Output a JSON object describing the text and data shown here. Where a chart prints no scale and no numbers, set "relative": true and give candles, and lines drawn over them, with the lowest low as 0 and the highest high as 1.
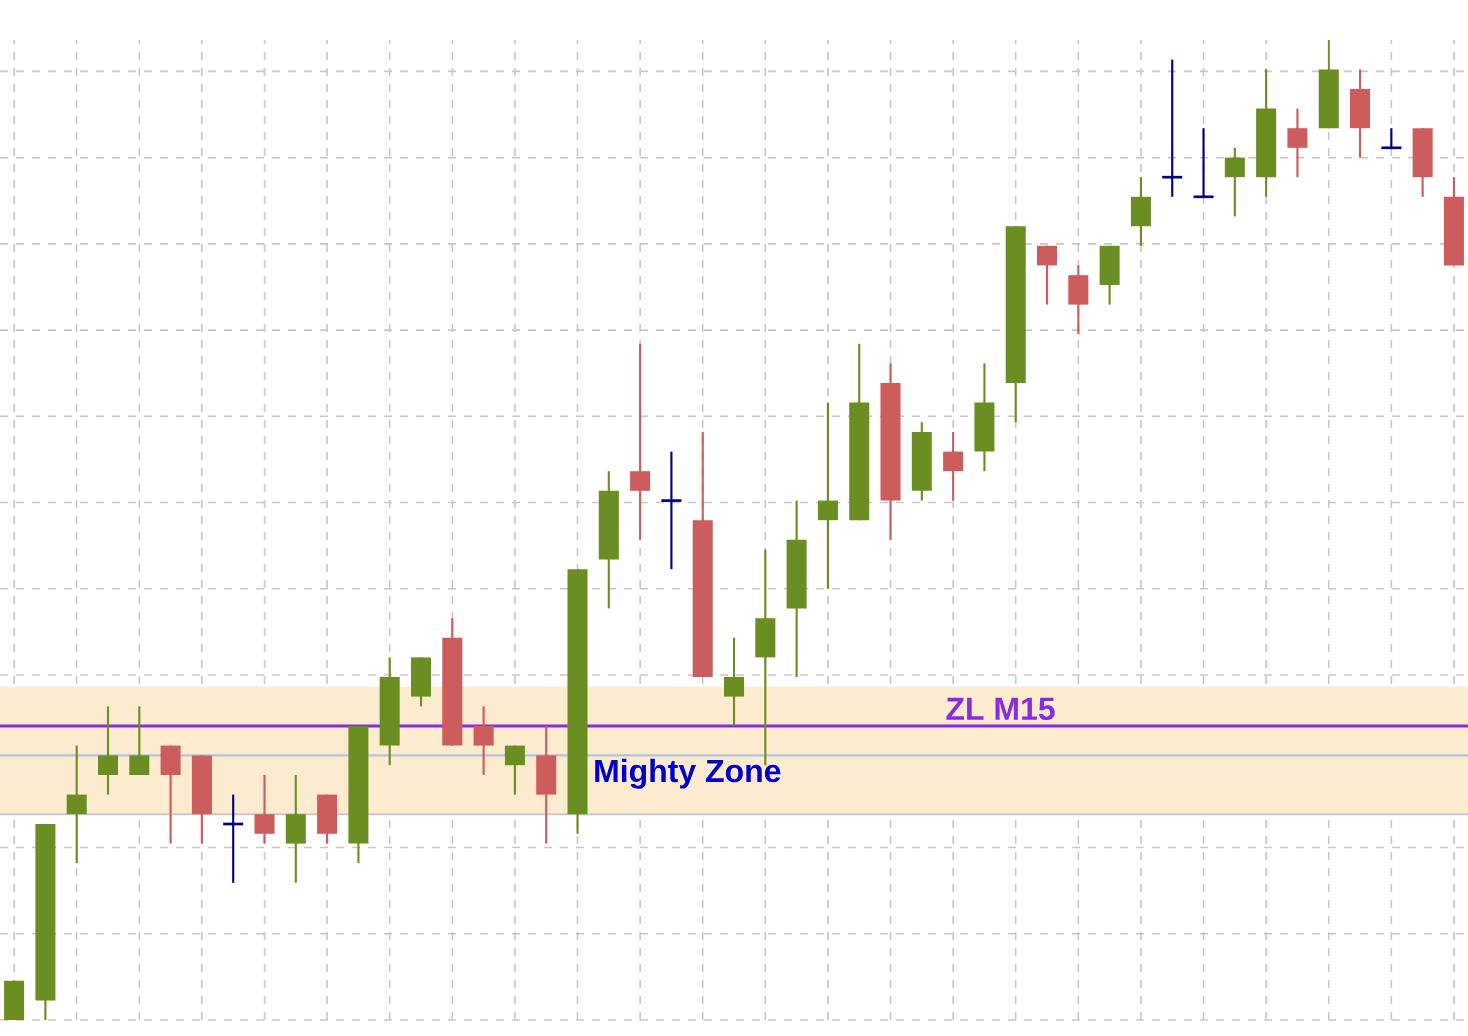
{
  "chart_data": {
    "type": "candlestick",
    "relative": true,
    "categories": [
      null,
      null,
      null,
      null,
      null,
      null,
      null,
      null,
      null,
      null,
      null,
      null,
      null,
      null,
      null,
      null,
      null,
      null,
      null,
      null,
      null,
      null,
      null,
      null,
      null,
      null,
      null,
      null,
      null,
      null,
      null,
      null,
      null,
      null,
      null,
      null,
      null,
      null,
      null,
      null,
      null,
      null,
      null,
      null,
      null,
      null,
      null
    ],
    "ohlc": [
      [
        0.0,
        0.04,
        0,
        0.04
      ],
      [
        0.02,
        0.2,
        0,
        0.2
      ],
      [
        0.21,
        0.28,
        0.16,
        0.23
      ],
      [
        0.25,
        0.32,
        0.23,
        0.27
      ],
      [
        0.25,
        0.32,
        0.25,
        0.27
      ],
      [
        0.28,
        0.28,
        0.18,
        0.25
      ],
      [
        0.27,
        0.27,
        0.18,
        0.21
      ],
      [
        0.2,
        0.23,
        0.14,
        0.2
      ],
      [
        0.21,
        0.25,
        0.18,
        0.19
      ],
      [
        0.18,
        0.25,
        0.14,
        0.21
      ],
      [
        0.23,
        0.23,
        0.18,
        0.19
      ],
      [
        0.18,
        0.3,
        0.16,
        0.3
      ],
      [
        0.28,
        0.37,
        0.26,
        0.35
      ],
      [
        0.33,
        0.37,
        0.32,
        0.37
      ],
      [
        0.39,
        0.41,
        0.28,
        0.28
      ],
      [
        0.3,
        0.32,
        0.25,
        0.28
      ],
      [
        0.26,
        0.28,
        0.23,
        0.28
      ],
      [
        0.27,
        0.3,
        0.18,
        0.23
      ],
      [
        0.21,
        0.46,
        0.19,
        0.46
      ],
      [
        0.47,
        0.56,
        0.42,
        0.54
      ],
      [
        0.56,
        0.69,
        0.49,
        0.54
      ],
      [
        0.53,
        0.58,
        0.46,
        0.53
      ],
      [
        0.51,
        0.6,
        0.35,
        0.35
      ],
      [
        0.33,
        0.39,
        0.3,
        0.35
      ],
      [
        0.37,
        0.48,
        0.26,
        0.41
      ],
      [
        0.42,
        0.53,
        0.35,
        0.49
      ],
      [
        0.51,
        0.63,
        0.44,
        0.53
      ],
      [
        0.51,
        0.69,
        0.51,
        0.63
      ],
      [
        0.65,
        0.67,
        0.49,
        0.53
      ],
      [
        0.54,
        0.61,
        0.53,
        0.6
      ],
      [
        0.58,
        0.6,
        0.53,
        0.56
      ],
      [
        0.58,
        0.67,
        0.56,
        0.63
      ],
      [
        0.65,
        0.81,
        0.61,
        0.81
      ],
      [
        0.79,
        0.79,
        0.73,
        0.77
      ],
      [
        0.76,
        0.77,
        0.7,
        0.73
      ],
      [
        0.75,
        0.79,
        0.73,
        0.79
      ],
      [
        0.81,
        0.86,
        0.79,
        0.84
      ],
      [
        0.86,
        0.98,
        0.84,
        0.86
      ],
      [
        0.84,
        0.91,
        0.84,
        0.84
      ],
      [
        0.86,
        0.89,
        0.82,
        0.88
      ],
      [
        0.86,
        0.97,
        0.84,
        0.93
      ],
      [
        0.91,
        0.93,
        0.86,
        0.89
      ],
      [
        0.91,
        1,
        0.91,
        0.97
      ],
      [
        0.95,
        0.97,
        0.88,
        0.91
      ],
      [
        0.89,
        0.91,
        0.89,
        0.89
      ],
      [
        0.91,
        0.91,
        0.84,
        0.86
      ],
      [
        0.84,
        0.86,
        0.77,
        0.77
      ]
    ],
    "colors": [
      "#6b8e23",
      "#6b8e23",
      "#6b8e23",
      "#6b8e23",
      "#6b8e23",
      "#cd5c5c",
      "#cd5c5c",
      "#000080",
      "#cd5c5c",
      "#6b8e23",
      "#cd5c5c",
      "#6b8e23",
      "#6b8e23",
      "#6b8e23",
      "#cd5c5c",
      "#cd5c5c",
      "#6b8e23",
      "#cd5c5c",
      "#6b8e23",
      "#6b8e23",
      "#cd5c5c",
      "#000080",
      "#cd5c5c",
      "#6b8e23",
      "#6b8e23",
      "#6b8e23",
      "#6b8e23",
      "#6b8e23",
      "#cd5c5c",
      "#6b8e23",
      "#cd5c5c",
      "#6b8e23",
      "#6b8e23",
      "#cd5c5c",
      "#cd5c5c",
      "#6b8e23",
      "#6b8e23",
      "#000080",
      "#000080",
      "#6b8e23",
      "#6b8e23",
      "#cd5c5c",
      "#6b8e23",
      "#cd5c5c",
      "#000080",
      "#cd5c5c",
      "#cd5c5c"
    ],
    "ref_lines": [
      {
        "axis": "y",
        "value": 0.3,
        "label": "ZL M15",
        "color": "#8a2be2"
      },
      {
        "axis": "y",
        "value": 0.27,
        "color": "#b0c4de"
      },
      {
        "axis": "y",
        "value": 0.21,
        "color": "#c8c8c8"
      }
    ],
    "bands": [
      {
        "axis": "y",
        "from": 0.21,
        "to": 0.34,
        "label": "Mighty Zone",
        "color": "#fdebd0"
      }
    ],
    "grid": true,
    "tick_labels": false
  }
}
